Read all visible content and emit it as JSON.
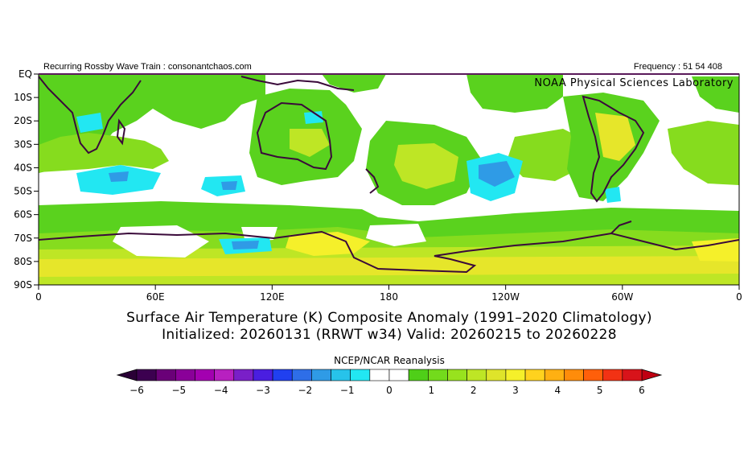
{
  "header": {
    "left_text": "Recurring Rossby Wave Train : consonantchaos.com",
    "right_text": "Frequency : 51 54 408",
    "lab_text": "NOAA Physical Sciences Laboratory"
  },
  "axes": {
    "y_ticks": [
      "EQ",
      "10S",
      "20S",
      "30S",
      "40S",
      "50S",
      "60S",
      "70S",
      "80S",
      "90S"
    ],
    "x_ticks": [
      "0",
      "60E",
      "120E",
      "180",
      "120W",
      "60W",
      "0"
    ]
  },
  "titles": {
    "line1": "Surface Air Temperature (K) Composite Anomaly (1991–2020 Climatology)",
    "line2": "Initialized: 20260131 (RRWT w34) Valid: 20260215 to 20260228"
  },
  "colorbar": {
    "title": "NCEP/NCAR Reanalysis",
    "labels": [
      "−6",
      "−5",
      "−4",
      "−3",
      "−2",
      "−1",
      "0",
      "1",
      "2",
      "3",
      "4",
      "5",
      "6"
    ],
    "colors": [
      "#3c0050",
      "#6a0078",
      "#8a0099",
      "#a300b0",
      "#b820c0",
      "#7a1fc8",
      "#4a1ee0",
      "#2040f0",
      "#2e6ee8",
      "#2f9be6",
      "#27c3ea",
      "#22e7f2",
      "#ffffff",
      "#ffffff",
      "#4fcf18",
      "#73db1c",
      "#98e21e",
      "#bee625",
      "#dfe42a",
      "#f5f02a",
      "#ffd21e",
      "#ffb012",
      "#ff8c0a",
      "#ff5f0a",
      "#f23214",
      "#d8131a"
    ],
    "left_arrow_color": "#2a0036",
    "right_arrow_color": "#c00012"
  },
  "palette": {
    "green_light": "#5ad21e",
    "green_mid": "#86dc1e",
    "green_yellow": "#bee625",
    "yellow": "#e6e62a",
    "yellow_bright": "#f5f02a",
    "orange": "#ffd21e",
    "cyan": "#22e7f2",
    "blue": "#2f9be6",
    "coast": "#3a0a3a"
  }
}
